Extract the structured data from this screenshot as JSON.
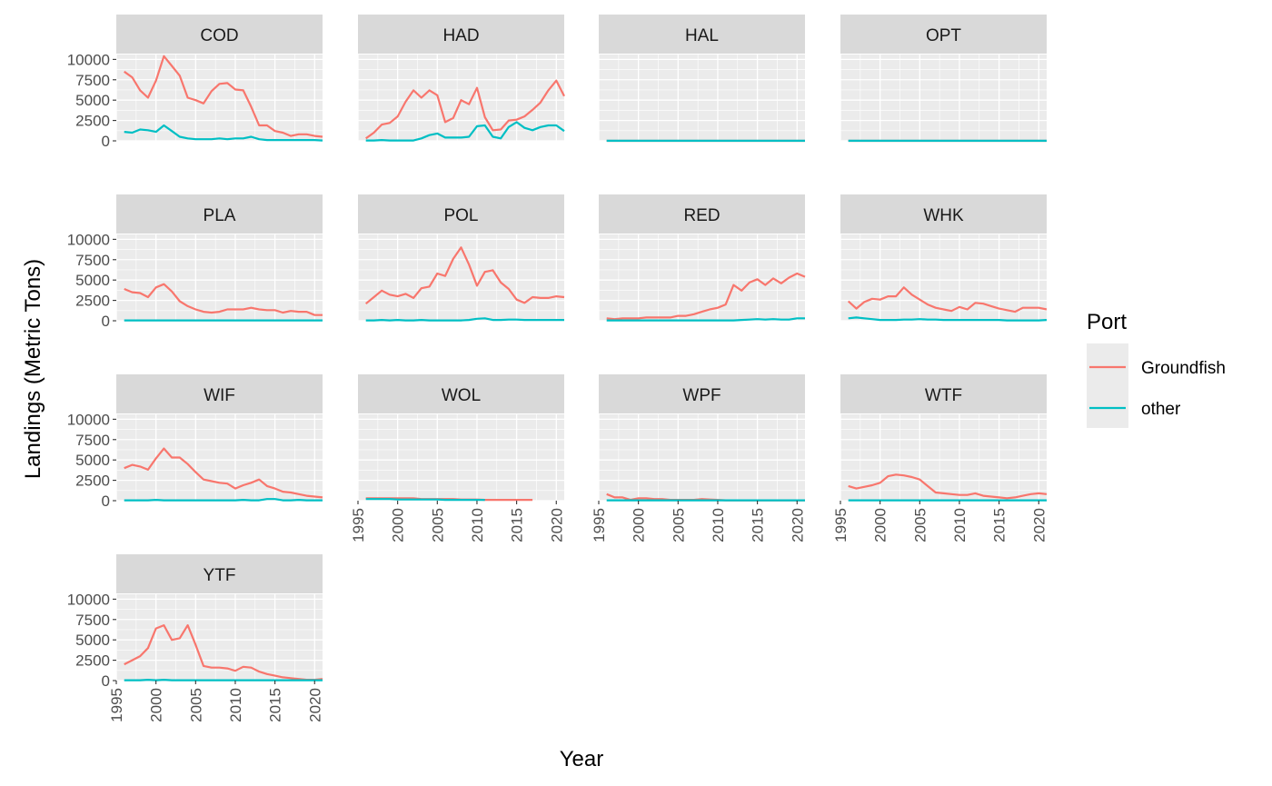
{
  "chart_data": {
    "type": "line",
    "facet_layout": "4-column grid",
    "xlabel": "Year",
    "ylabel": "Landings (Metric Tons)",
    "xlim": [
      1995,
      2021
    ],
    "ylim": [
      0,
      10600
    ],
    "x_ticks": [
      1995,
      2000,
      2005,
      2010,
      2015,
      2020
    ],
    "y_ticks": [
      0,
      2500,
      5000,
      7500,
      10000
    ],
    "grid": true,
    "legend": {
      "title": "Port",
      "placement": "right",
      "entries": [
        {
          "name": "Groundfish",
          "color": "#F8766D"
        },
        {
          "name": "other",
          "color": "#00BFC4"
        }
      ]
    },
    "x": [
      1996,
      1997,
      1998,
      1999,
      2000,
      2001,
      2002,
      2003,
      2004,
      2005,
      2006,
      2007,
      2008,
      2009,
      2010,
      2011,
      2012,
      2013,
      2014,
      2015,
      2016,
      2017,
      2018,
      2019,
      2020,
      2021
    ],
    "panels": [
      {
        "name": "COD",
        "groundfish": [
          8500,
          7800,
          6200,
          5300,
          7400,
          10400,
          9200,
          8000,
          5300,
          5000,
          4600,
          6100,
          7000,
          7100,
          6300,
          6200,
          4200,
          1900,
          1900,
          1200,
          1000,
          600,
          800,
          800,
          600,
          500
        ],
        "other": [
          1100,
          1000,
          1400,
          1300,
          1100,
          1900,
          1200,
          500,
          300,
          200,
          200,
          200,
          300,
          200,
          300,
          300,
          500,
          200,
          100,
          100,
          100,
          100,
          100,
          100,
          100,
          50
        ]
      },
      {
        "name": "HAD",
        "groundfish": [
          300,
          1000,
          2000,
          2200,
          3000,
          4800,
          6200,
          5300,
          6200,
          5600,
          2300,
          2800,
          5000,
          4500,
          6500,
          2900,
          1300,
          1400,
          2500,
          2600,
          3000,
          3800,
          4700,
          6200,
          7400,
          5500
        ],
        "other": [
          50,
          50,
          100,
          50,
          50,
          50,
          50,
          300,
          700,
          900,
          400,
          400,
          400,
          500,
          1800,
          1900,
          500,
          300,
          1700,
          2300,
          1600,
          1300,
          1700,
          1900,
          1900,
          1200
        ],
        "other_end": 2021
      },
      {
        "name": "HAL",
        "groundfish": [
          5,
          5,
          5,
          5,
          5,
          5,
          5,
          5,
          5,
          5,
          5,
          5,
          5,
          5,
          5,
          5,
          5,
          5,
          5,
          5,
          5,
          5,
          5,
          5,
          5,
          5
        ],
        "other": [
          10,
          10,
          10,
          10,
          10,
          10,
          10,
          10,
          10,
          10,
          10,
          10,
          10,
          10,
          10,
          10,
          10,
          10,
          10,
          10,
          10,
          10,
          10,
          10,
          10,
          10
        ]
      },
      {
        "name": "OPT",
        "groundfish": [
          5,
          5,
          5,
          5,
          5,
          5,
          5,
          5,
          5,
          5,
          5,
          5,
          5,
          5,
          5,
          5,
          5,
          5,
          5,
          5,
          5,
          5,
          5,
          5,
          5,
          5
        ],
        "other": [
          10,
          10,
          10,
          10,
          10,
          10,
          10,
          10,
          10,
          10,
          10,
          10,
          10,
          10,
          10,
          10,
          10,
          10,
          10,
          10,
          10,
          10,
          10,
          10,
          10,
          10
        ]
      },
      {
        "name": "PLA",
        "groundfish": [
          3900,
          3500,
          3400,
          2900,
          4100,
          4500,
          3600,
          2400,
          1800,
          1400,
          1100,
          1000,
          1100,
          1400,
          1400,
          1400,
          1600,
          1400,
          1300,
          1300,
          1000,
          1200,
          1100,
          1100,
          700,
          700
        ],
        "other": [
          50,
          50,
          50,
          50,
          50,
          50,
          50,
          50,
          50,
          50,
          50,
          50,
          50,
          50,
          50,
          50,
          50,
          50,
          50,
          50,
          50,
          50,
          50,
          50,
          50,
          50
        ]
      },
      {
        "name": "POL",
        "groundfish": [
          2100,
          2900,
          3700,
          3200,
          3000,
          3300,
          2800,
          4000,
          4200,
          5800,
          5500,
          7600,
          9000,
          6900,
          4300,
          6000,
          6200,
          4700,
          3900,
          2600,
          2200,
          2900,
          2800,
          2800,
          3000,
          2900
        ],
        "other": [
          50,
          50,
          100,
          50,
          100,
          50,
          50,
          100,
          50,
          50,
          50,
          50,
          50,
          100,
          250,
          300,
          100,
          100,
          150,
          150,
          100,
          100,
          100,
          100,
          100,
          100
        ]
      },
      {
        "name": "RED",
        "groundfish": [
          300,
          200,
          300,
          300,
          300,
          400,
          400,
          400,
          400,
          600,
          600,
          800,
          1100,
          1400,
          1600,
          2000,
          4400,
          3700,
          4700,
          5100,
          4400,
          5200,
          4600,
          5300,
          5800,
          5400
        ],
        "other": [
          50,
          50,
          50,
          50,
          50,
          50,
          50,
          50,
          50,
          50,
          50,
          50,
          50,
          50,
          50,
          50,
          50,
          100,
          150,
          200,
          150,
          200,
          150,
          150,
          300,
          300
        ]
      },
      {
        "name": "WHK",
        "groundfish": [
          2400,
          1500,
          2300,
          2700,
          2600,
          3000,
          3000,
          4100,
          3200,
          2600,
          2000,
          1600,
          1400,
          1200,
          1700,
          1400,
          2200,
          2100,
          1800,
          1500,
          1300,
          1100,
          1600,
          1600,
          1600,
          1400
        ],
        "other": [
          300,
          400,
          300,
          200,
          100,
          100,
          100,
          150,
          150,
          200,
          150,
          150,
          100,
          100,
          100,
          100,
          100,
          100,
          100,
          100,
          50,
          50,
          50,
          50,
          50,
          100
        ]
      },
      {
        "name": "WIF",
        "groundfish": [
          4000,
          4400,
          4200,
          3800,
          5200,
          6400,
          5300,
          5300,
          4500,
          3500,
          2600,
          2400,
          2200,
          2100,
          1500,
          1900,
          2200,
          2600,
          1800,
          1500,
          1100,
          1000,
          800,
          600,
          500,
          400
        ],
        "other": [
          50,
          50,
          50,
          50,
          100,
          50,
          50,
          50,
          50,
          50,
          50,
          50,
          50,
          50,
          50,
          100,
          50,
          50,
          200,
          200,
          50,
          50,
          100,
          50,
          50,
          50
        ]
      },
      {
        "name": "WOL",
        "groundfish": [
          300,
          300,
          300,
          300,
          300,
          300,
          300,
          200,
          200,
          200,
          200,
          200,
          150,
          150,
          150,
          100,
          100,
          100,
          100,
          100,
          100,
          100,
          null,
          null,
          null,
          null
        ],
        "other": [
          200,
          200,
          200,
          200,
          150,
          150,
          150,
          150,
          150,
          150,
          100,
          100,
          100,
          100,
          100,
          100,
          null,
          null,
          null,
          null,
          null,
          null,
          null,
          null,
          null,
          null
        ]
      },
      {
        "name": "WPF",
        "groundfish": [
          800,
          400,
          400,
          100,
          300,
          300,
          200,
          200,
          100,
          100,
          100,
          100,
          200,
          150,
          100,
          50,
          50,
          50,
          50,
          50,
          50,
          50,
          50,
          50,
          50,
          50
        ],
        "other": [
          50,
          50,
          50,
          50,
          50,
          50,
          50,
          50,
          50,
          50,
          50,
          50,
          50,
          50,
          50,
          50,
          50,
          50,
          50,
          50,
          50,
          50,
          50,
          50,
          50,
          50
        ]
      },
      {
        "name": "WTF",
        "groundfish": [
          1800,
          1500,
          1700,
          1900,
          2200,
          3000,
          3200,
          3100,
          2900,
          2600,
          1800,
          1000,
          900,
          800,
          700,
          700,
          900,
          600,
          500,
          400,
          300,
          400,
          600,
          800,
          900,
          800
        ],
        "other": [
          50,
          50,
          50,
          50,
          50,
          50,
          50,
          50,
          50,
          50,
          50,
          50,
          50,
          50,
          50,
          50,
          50,
          50,
          50,
          50,
          50,
          50,
          50,
          50,
          50,
          50
        ]
      },
      {
        "name": "YTF",
        "groundfish": [
          2000,
          2500,
          3000,
          4000,
          6400,
          6800,
          5000,
          5200,
          6800,
          4400,
          1800,
          1600,
          1600,
          1500,
          1200,
          1700,
          1600,
          1100,
          800,
          600,
          400,
          300,
          200,
          100,
          100,
          200
        ],
        "other": [
          50,
          50,
          50,
          100,
          50,
          100,
          50,
          50,
          50,
          50,
          50,
          50,
          50,
          50,
          50,
          50,
          50,
          50,
          50,
          50,
          50,
          50,
          50,
          50,
          50,
          50
        ]
      }
    ]
  }
}
